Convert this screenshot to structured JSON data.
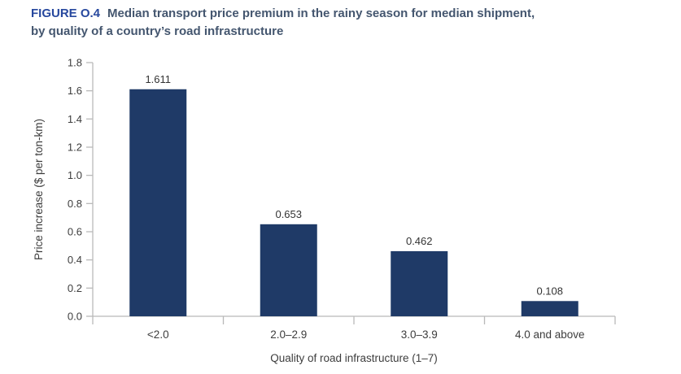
{
  "header": {
    "figure_label": "FIGURE O.4",
    "title_line1": "Median transport price premium in the rainy season for median shipment,",
    "title_line2": "by quality of a country’s road infrastructure"
  },
  "chart_data": {
    "type": "bar",
    "title": "Median transport price premium in the rainy season for median shipment, by quality of a country’s road infrastructure",
    "categories": [
      "<2.0",
      "2.0–2.9",
      "3.0–3.9",
      "4.0 and above"
    ],
    "values": [
      1.611,
      0.653,
      0.462,
      0.108
    ],
    "value_labels": [
      "1.611",
      "0.653",
      "0.462",
      "0.108"
    ],
    "xlabel": "Quality of road infrastructure (1–7)",
    "ylabel": "Price increase ($ per ton-km)",
    "ylim": [
      0,
      1.8
    ],
    "ytick_step": 0.2,
    "ytick_labels": [
      "0.0",
      "0.2",
      "0.4",
      "0.6",
      "0.8",
      "1.0",
      "1.2",
      "1.4",
      "1.6",
      "1.8"
    ],
    "grid": false,
    "legend": "none",
    "colors": {
      "bar": "#1f3a67",
      "axis": "#b9b9b9",
      "tick_text": "#3d3d3d",
      "value_text": "#333333",
      "figure_label": "#27489e",
      "title_text": "#44566f"
    }
  }
}
